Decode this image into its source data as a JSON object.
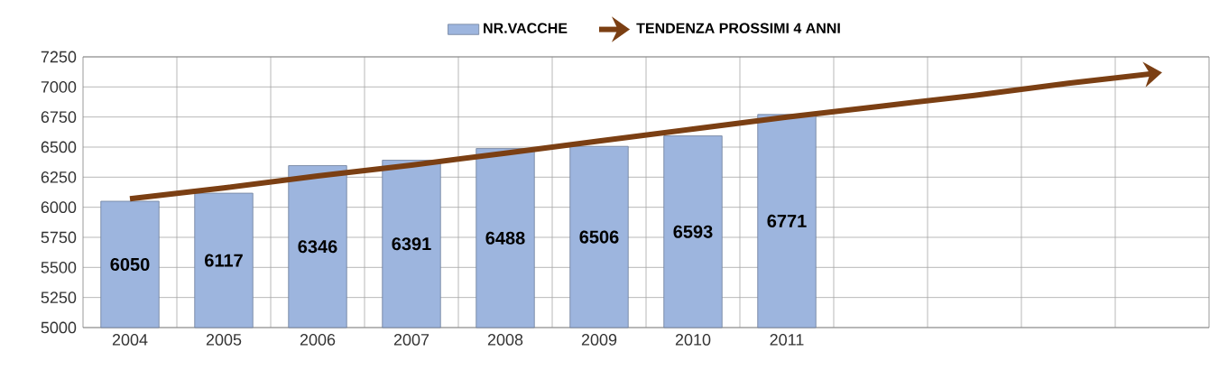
{
  "chart_data": {
    "type": "bar",
    "categories": [
      "2004",
      "2005",
      "2006",
      "2007",
      "2008",
      "2009",
      "2010",
      "2011",
      null,
      null,
      null,
      null
    ],
    "series": [
      {
        "name": "NR.VACCHE",
        "color": "#9db5de",
        "values": [
          6050,
          6117,
          6346,
          6391,
          6488,
          6506,
          6593,
          6771,
          null,
          null,
          null,
          null
        ],
        "value_labels": [
          "6050",
          "6117",
          "6346",
          "6391",
          "6488",
          "6506",
          "6593",
          "6771",
          null,
          null,
          null,
          null
        ]
      },
      {
        "name": "TENDENZA PROSSIMI 4 ANNI",
        "type": "line",
        "color": "#7b3f13",
        "values": [
          6070,
          6160,
          6260,
          6350,
          6450,
          6550,
          6650,
          6750,
          6840,
          6930,
          7030,
          7120
        ]
      }
    ],
    "ylim": [
      5000,
      7250
    ],
    "yticks": [
      5000,
      5250,
      5500,
      5750,
      6000,
      6250,
      6500,
      6750,
      7000,
      7250
    ],
    "grid": true,
    "legend": "top",
    "marker": "none",
    "line_style": "solid"
  }
}
